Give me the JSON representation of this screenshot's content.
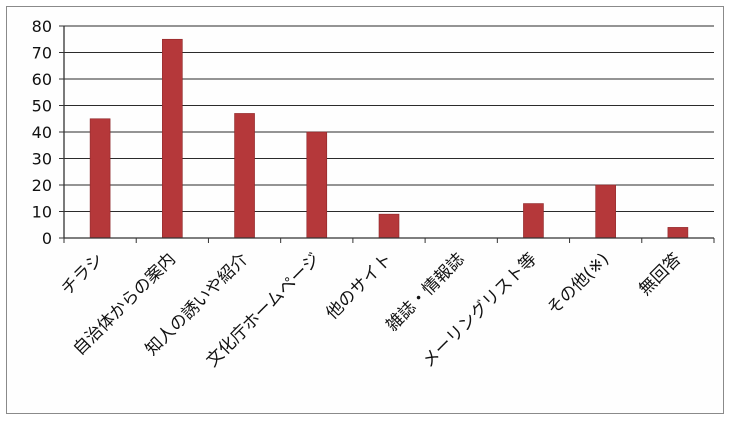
{
  "chart_data": {
    "type": "bar",
    "categories": [
      "チラシ",
      "自治体からの案内",
      "知人の誘いや紹介",
      "文化庁ホームページ",
      "他のサイト",
      "雑誌・情報誌",
      "メーリングリスト等",
      "その他(※)",
      "無回答"
    ],
    "values": [
      45,
      75,
      47,
      40,
      9,
      0,
      13,
      20,
      4
    ],
    "yticks": [
      "0",
      "10",
      "20",
      "30",
      "40",
      "50",
      "60",
      "70",
      "80"
    ],
    "ylim": [
      0,
      80
    ],
    "grid": true,
    "legend": "none",
    "colors": {
      "bar": "#b5383a",
      "bar_edge": "#8e2628",
      "grid": "#2b2b2b",
      "text": "#111111",
      "axis": "#333333"
    }
  }
}
